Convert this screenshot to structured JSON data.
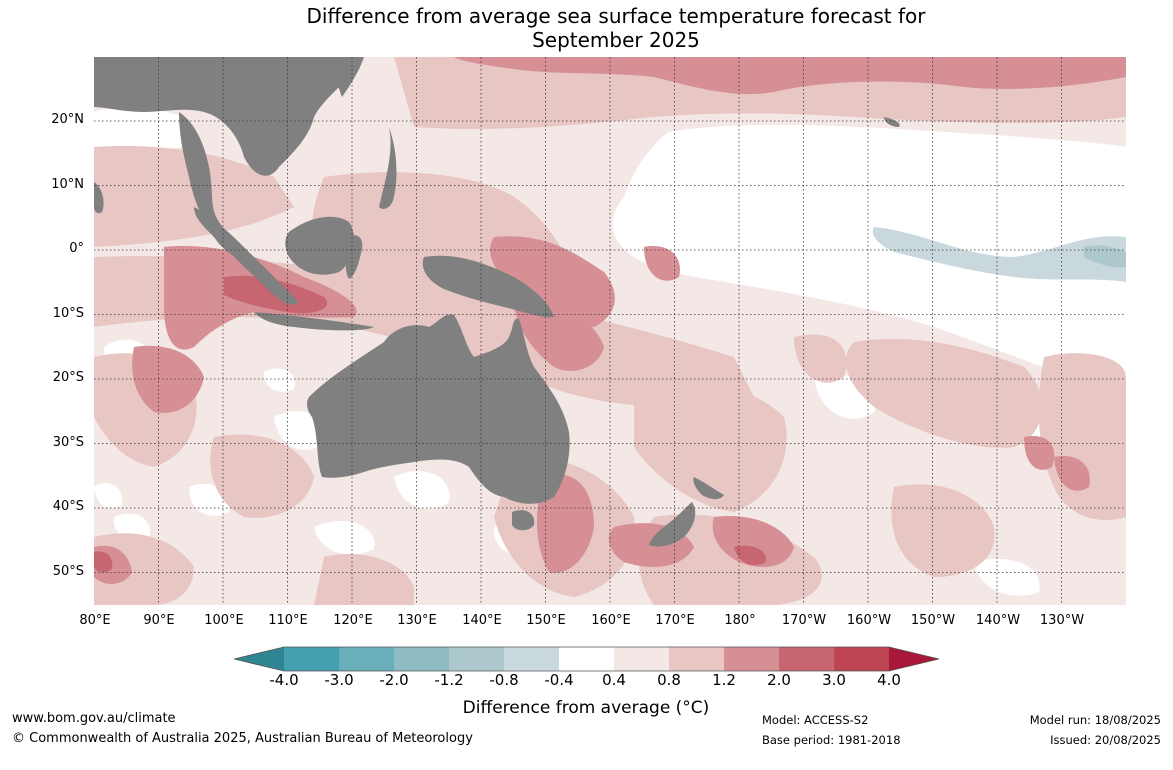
{
  "title_line1": "Difference from average sea surface temperature forecast for",
  "title_line2": "September 2025",
  "map": {
    "lat_labels": [
      "20°N",
      "10°N",
      "0°",
      "10°S",
      "20°S",
      "30°S",
      "40°S",
      "50°S"
    ],
    "lon_labels": [
      "80°E",
      "90°E",
      "100°E",
      "110°E",
      "120°E",
      "130°E",
      "140°E",
      "150°E",
      "160°E",
      "170°E",
      "180°",
      "170°W",
      "160°W",
      "150°W",
      "140°W",
      "130°W"
    ],
    "land_color": "#808080",
    "grid": "dotted"
  },
  "colorbar": {
    "ticks": [
      "-4.0",
      "-3.0",
      "-2.0",
      "-1.2",
      "-0.8",
      "-0.4",
      "0.4",
      "0.8",
      "1.2",
      "2.0",
      "3.0",
      "4.0"
    ],
    "colors": [
      "#2f8591",
      "#45a0b0",
      "#6aaeba",
      "#8fbcc4",
      "#adc8cd",
      "#c9d8dc",
      "#ffffff",
      "#f4e8e6",
      "#e7c6c3",
      "#d78f96",
      "#c76670",
      "#bd4452",
      "#a8183a"
    ],
    "label": "Difference from average (°C)"
  },
  "footer": {
    "website": "www.bom.gov.au/climate",
    "copyright": "© Commonwealth of Australia 2025, Australian Bureau of Meteorology",
    "model": "Model: ACCESS-S2",
    "base_period": "Base period: 1981-2018",
    "model_run": "Model run: 18/08/2025",
    "issued": "Issued: 20/08/2025"
  }
}
